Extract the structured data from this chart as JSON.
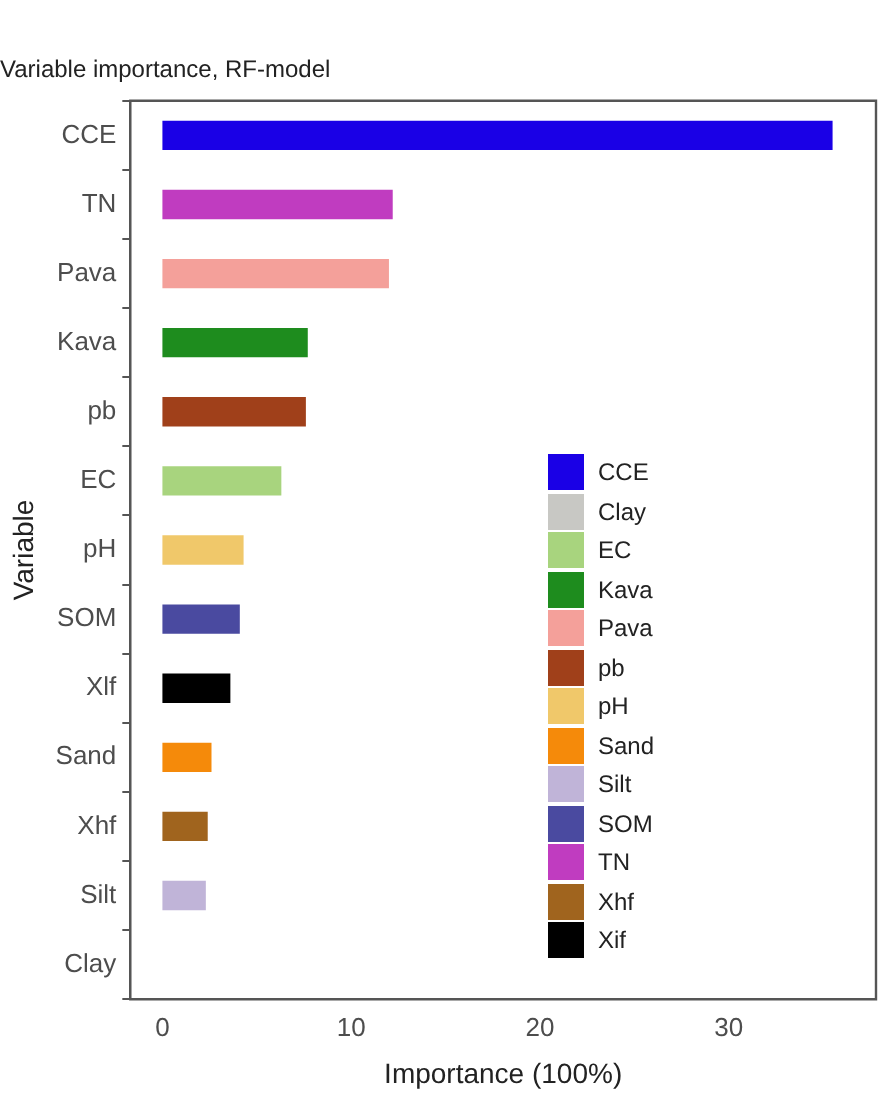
{
  "chart_data": {
    "type": "bar",
    "orientation": "horizontal",
    "title": "Variable importance, RF-model",
    "xlabel": "Importance (100%)",
    "ylabel": "Variable",
    "categories": [
      "CCE",
      "TN",
      "Pava",
      "Kava",
      "pb",
      "EC",
      "pH",
      "SOM",
      "Xlf",
      "Sand",
      "Xhf",
      "Silt",
      "Clay"
    ],
    "series": [
      {
        "name": "CCE",
        "color": "#1a00e6",
        "values": [
          35.5,
          null,
          null,
          null,
          null,
          null,
          null,
          null,
          null,
          null,
          null,
          null,
          null
        ]
      },
      {
        "name": "Clay",
        "color": "#c8c8c4",
        "values": [
          null,
          null,
          null,
          null,
          null,
          null,
          null,
          null,
          null,
          null,
          null,
          null,
          0
        ]
      },
      {
        "name": "EC",
        "color": "#a8d47e",
        "values": [
          null,
          null,
          null,
          null,
          null,
          6.3,
          null,
          null,
          null,
          null,
          null,
          null,
          null
        ]
      },
      {
        "name": "Kava",
        "color": "#1e8c1e",
        "values": [
          null,
          null,
          null,
          7.7,
          null,
          null,
          null,
          null,
          null,
          null,
          null,
          null,
          null
        ]
      },
      {
        "name": "Pava",
        "color": "#f4a09a",
        "values": [
          null,
          null,
          12.0,
          null,
          null,
          null,
          null,
          null,
          null,
          null,
          null,
          null,
          null
        ]
      },
      {
        "name": "pb",
        "color": "#a0401a",
        "values": [
          null,
          null,
          null,
          null,
          7.6,
          null,
          null,
          null,
          null,
          null,
          null,
          null,
          null
        ]
      },
      {
        "name": "pH",
        "color": "#f0c86a",
        "values": [
          null,
          null,
          null,
          null,
          null,
          null,
          4.3,
          null,
          null,
          null,
          null,
          null,
          null
        ]
      },
      {
        "name": "Sand",
        "color": "#f58a0a",
        "values": [
          null,
          null,
          null,
          null,
          null,
          null,
          null,
          null,
          null,
          2.6,
          null,
          null,
          null
        ]
      },
      {
        "name": "Silt",
        "color": "#c0b4d8",
        "values": [
          null,
          null,
          null,
          null,
          null,
          null,
          null,
          null,
          null,
          null,
          null,
          2.3,
          null
        ]
      },
      {
        "name": "SOM",
        "color": "#4a4aa0",
        "values": [
          null,
          null,
          null,
          null,
          null,
          null,
          null,
          4.1,
          null,
          null,
          null,
          null,
          null
        ]
      },
      {
        "name": "TN",
        "color": "#c03cc0",
        "values": [
          null,
          12.2,
          null,
          null,
          null,
          null,
          null,
          null,
          null,
          null,
          null,
          null,
          null
        ]
      },
      {
        "name": "Xhf",
        "color": "#a0641e",
        "values": [
          null,
          null,
          null,
          null,
          null,
          null,
          null,
          null,
          null,
          null,
          2.4,
          null,
          null
        ]
      },
      {
        "name": "Xif",
        "color": "#000000",
        "values": [
          null,
          null,
          null,
          null,
          null,
          null,
          null,
          null,
          3.6,
          null,
          null,
          null,
          null
        ]
      }
    ],
    "xlim": [
      -1.7,
      37.8
    ],
    "xticks": [
      0,
      10,
      20,
      30
    ],
    "legend": "bottom right"
  }
}
